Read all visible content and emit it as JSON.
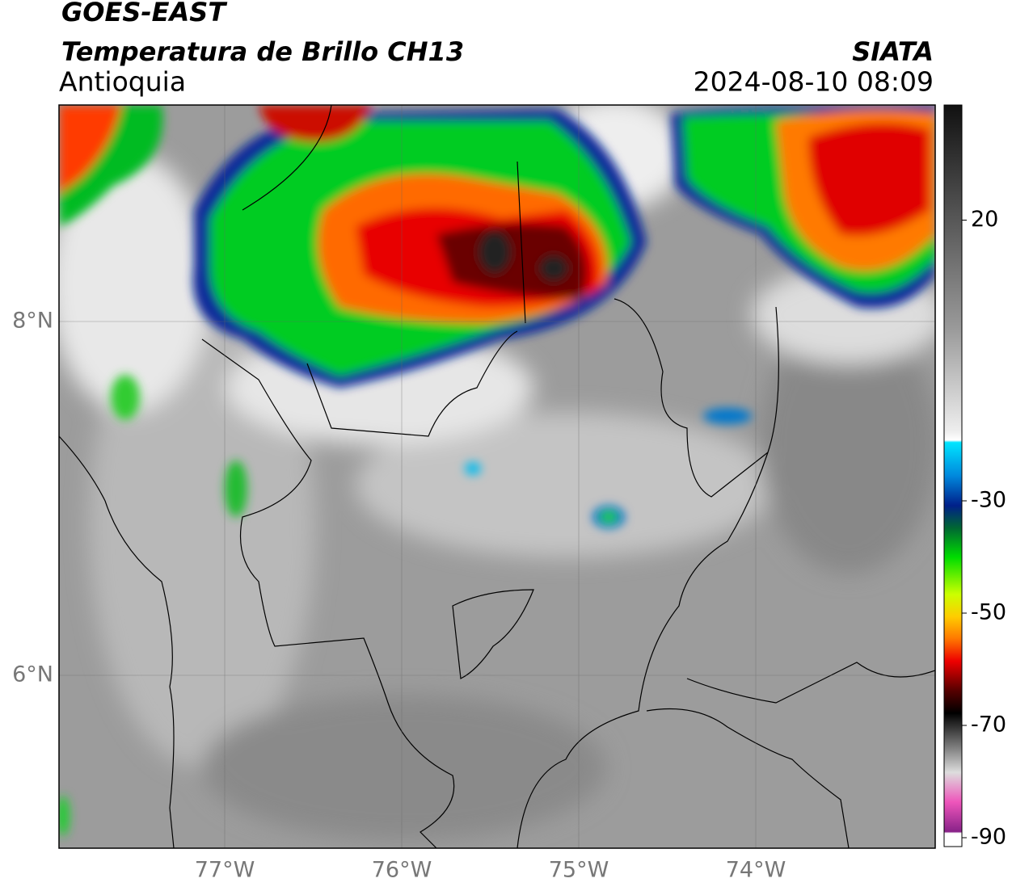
{
  "header": {
    "satellite": "GOES-EAST",
    "product": "Temperatura de Brillo CH13",
    "region": "Antioquia",
    "source": "SIATA",
    "datetime": "2024-08-10 08:09"
  },
  "map": {
    "lat_labels": [
      "8°N",
      "6°N"
    ],
    "lon_labels": [
      "77°W",
      "76°W",
      "75°W",
      "74°W"
    ]
  },
  "colorbar": {
    "ticks": [
      20,
      -30,
      -50,
      -70,
      -90
    ]
  }
}
